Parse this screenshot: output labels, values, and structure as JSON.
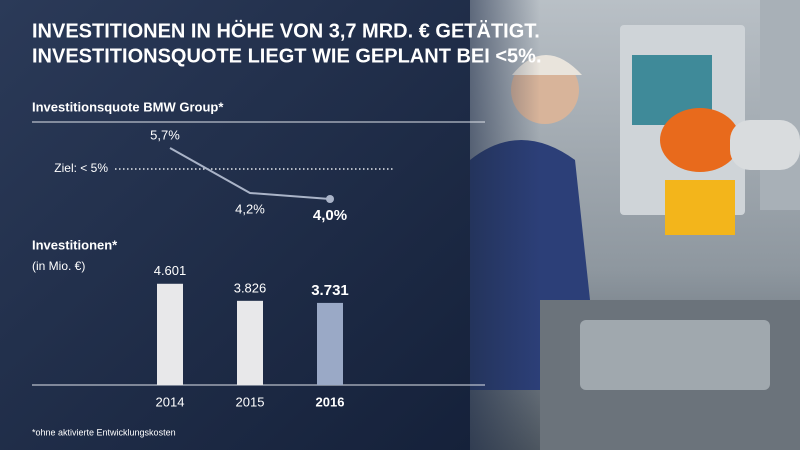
{
  "title_lines": [
    "INVESTITIONEN IN HÖHE VON 3,7 MRD. € GETÄTIGT.",
    "INVESTITIONSQUOTE LIEGT WIE GEPLANT BEI <5%."
  ],
  "footnote": "*ohne aktivierte Entwicklungskosten",
  "chart_data": [
    {
      "type": "line",
      "title": "Investitionsquote BMW Group*",
      "values": [
        5.7,
        4.2,
        4.0
      ],
      "value_labels": [
        "5,7%",
        "4,2%",
        "4,0%"
      ],
      "color": "#aab4c8",
      "ylim": [
        3.3,
        6.3
      ],
      "reference": {
        "value": 5,
        "label": "Ziel: < 5%"
      }
    },
    {
      "type": "bar",
      "title": "Investitionen*",
      "subtitle": "(in Mio. €)",
      "categories": [
        "2014",
        "2015",
        "2016"
      ],
      "values": [
        4601,
        3826,
        3731
      ],
      "value_labels": [
        "4.601",
        "3.826",
        "3.731"
      ],
      "colors": [
        "#e8e8ea",
        "#e8e8ea",
        "#9aa9c6"
      ],
      "ylim": [
        0,
        5000
      ]
    }
  ]
}
